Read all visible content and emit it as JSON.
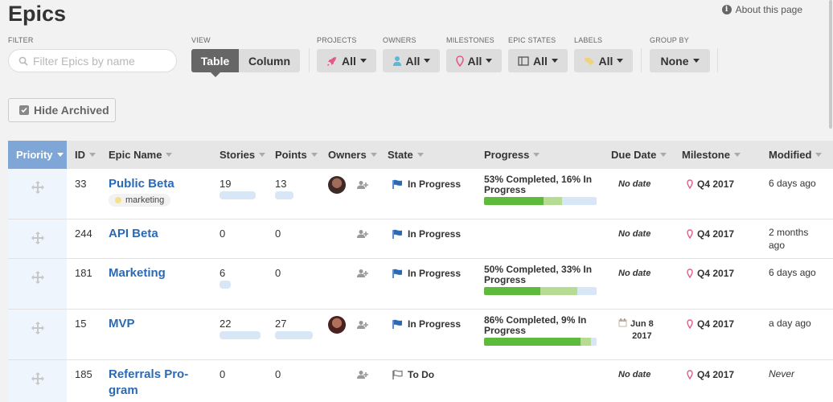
{
  "page": {
    "title": "Epics",
    "about": "About this page"
  },
  "filters": {
    "filter_label": "FILTER",
    "search_placeholder": "Filter Epics by name",
    "view_label": "VIEW",
    "view_table": "Table",
    "view_column": "Column",
    "projects_label": "PROJECTS",
    "projects_value": "All",
    "owners_label": "OWNERS",
    "owners_value": "All",
    "milestones_label": "MILESTONES",
    "milestones_value": "All",
    "epic_states_label": "EPIC STATES",
    "epic_states_value": "All",
    "labels_label": "LABELS",
    "labels_value": "All",
    "group_by_label": "GROUP BY",
    "group_by_value": "None",
    "hide_archived": "Hide Archived"
  },
  "table": {
    "headers": {
      "priority": "Priority",
      "id": "ID",
      "epic_name": "Epic Name",
      "stories": "Stories",
      "points": "Points",
      "owners": "Owners",
      "state": "State",
      "progress": "Progress",
      "due_date": "Due Date",
      "milestone": "Milestone",
      "modified": "Modified"
    },
    "rows": [
      {
        "id": "33",
        "name": "Public Beta",
        "label": "marketing",
        "stories": "19",
        "points": "13",
        "has_avatar": true,
        "state": "In Progress",
        "state_icon": "flag-filled-icon",
        "progress_text": "53% Completed, 16% In Progress",
        "completed": 53,
        "in_progress": 16,
        "due": "No date",
        "milestone": "Q4 2017",
        "modified": "6 days ago"
      },
      {
        "id": "244",
        "name": "API Beta",
        "stories": "0",
        "points": "0",
        "has_avatar": false,
        "state": "In Progress",
        "state_icon": "flag-filled-icon",
        "due": "No date",
        "milestone": "Q4 2017",
        "modified": "2 months ago"
      },
      {
        "id": "181",
        "name": "Marketing",
        "stories": "6",
        "points": "0",
        "has_avatar": false,
        "state": "In Progress",
        "state_icon": "flag-filled-icon",
        "progress_text": "50% Completed, 33% In Progress",
        "completed": 50,
        "in_progress": 33,
        "due": "No date",
        "milestone": "Q4 2017",
        "modified": "6 days ago"
      },
      {
        "id": "15",
        "name": "MVP",
        "stories": "22",
        "points": "27",
        "has_avatar": true,
        "state": "In Progress",
        "state_icon": "flag-filled-icon",
        "progress_text": "86% Completed, 9% In Progress",
        "completed": 86,
        "in_progress": 9,
        "due_line1": "Jun 8",
        "due_line2": "2017",
        "milestone": "Q4 2017",
        "modified": "a day ago"
      },
      {
        "id": "185",
        "name": "Referrals Pro-gram",
        "name_line1": "Referrals Pro-",
        "name_line2": "gram",
        "stories": "0",
        "points": "0",
        "has_avatar": false,
        "state": "To Do",
        "state_icon": "flag-outline-icon",
        "due": "No date",
        "milestone": "Q4 2017",
        "modified": "Never"
      }
    ]
  },
  "colors": {
    "accent_blue": "#2a6ab5",
    "priority_header": "#7ea7d8",
    "progress_done": "#5dbb3c",
    "progress_active": "#b6dc93",
    "milestone_pin": "#e05a8a"
  }
}
